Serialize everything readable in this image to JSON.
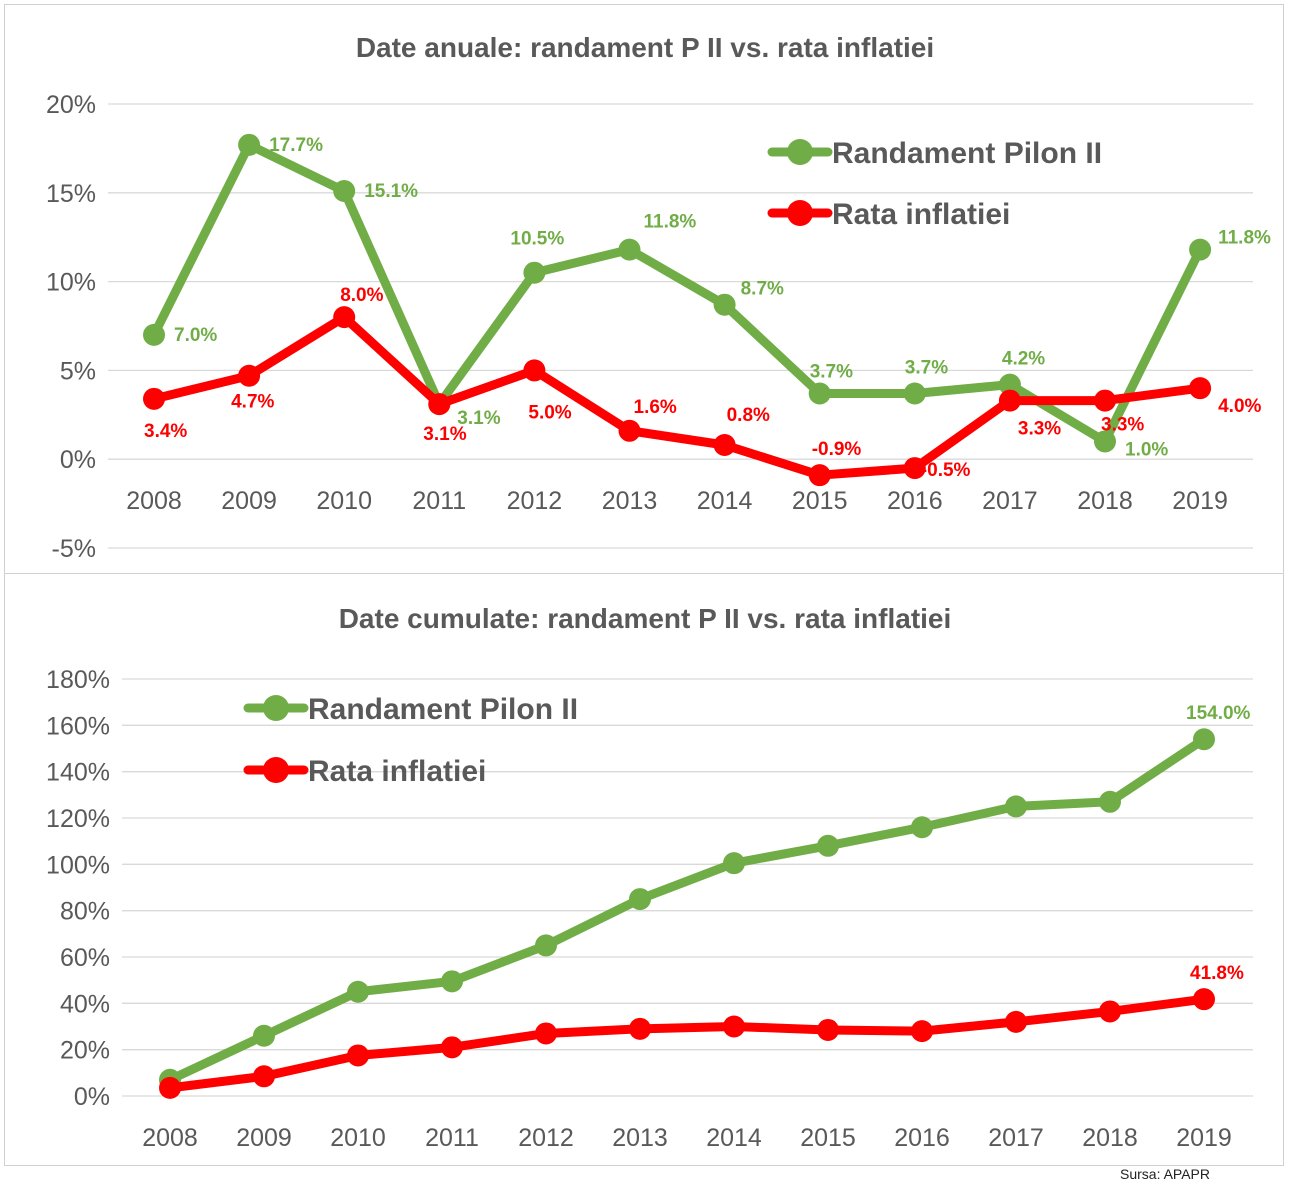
{
  "colors": {
    "green": "#70AD47",
    "red": "#FF0000",
    "grid": "#D9D9D9",
    "text": "#595959"
  },
  "source": "Sursa: APAPR",
  "chart_data": [
    {
      "type": "line",
      "title": "Date anuale: randament P II vs. rata inflatiei",
      "x": [
        "2008",
        "2009",
        "2010",
        "2011",
        "2012",
        "2013",
        "2014",
        "2015",
        "2016",
        "2017",
        "2018",
        "2019"
      ],
      "ylim": [
        -5,
        20
      ],
      "yticks": [
        "-5%",
        "0%",
        "5%",
        "10%",
        "15%",
        "20%"
      ],
      "grid": true,
      "legend_position": "top-right",
      "series": [
        {
          "name": "Randament Pilon II",
          "color": "#70AD47",
          "values": [
            7.0,
            17.7,
            15.1,
            3.1,
            10.5,
            11.8,
            8.7,
            3.7,
            3.7,
            4.2,
            1.0,
            11.8
          ],
          "labels": [
            "7.0%",
            "17.7%",
            "15.1%",
            "3.1%",
            "10.5%",
            "11.8%",
            "8.7%",
            "3.7%",
            "3.7%",
            "4.2%",
            "1.0%",
            "11.8%"
          ]
        },
        {
          "name": "Rata inflatiei",
          "color": "#FF0000",
          "values": [
            3.4,
            4.7,
            8.0,
            3.1,
            5.0,
            1.6,
            0.8,
            -0.9,
            -0.5,
            3.3,
            3.3,
            4.0
          ],
          "labels": [
            "3.4%",
            "4.7%",
            "8.0%",
            "3.1%",
            "5.0%",
            "1.6%",
            "0.8%",
            "-0.9%",
            "-0.5%",
            "3.3%",
            "3.3%",
            "4.0%"
          ]
        }
      ]
    },
    {
      "type": "line",
      "title": "Date cumulate: randament P II vs. rata inflatiei",
      "x": [
        "2008",
        "2009",
        "2010",
        "2011",
        "2012",
        "2013",
        "2014",
        "2015",
        "2016",
        "2017",
        "2018",
        "2019"
      ],
      "ylim": [
        0,
        180
      ],
      "yticks": [
        "0%",
        "20%",
        "40%",
        "60%",
        "80%",
        "100%",
        "120%",
        "140%",
        "160%",
        "180%"
      ],
      "grid": true,
      "legend_position": "top-left",
      "series": [
        {
          "name": "Randament Pilon II",
          "color": "#70AD47",
          "values": [
            7.0,
            26.0,
            45.0,
            49.5,
            65.0,
            85.0,
            100.5,
            108.0,
            116.0,
            125.0,
            127.0,
            154.0
          ],
          "labels": [
            "",
            "",
            "",
            "",
            "",
            "",
            "",
            "",
            "",
            "",
            "",
            "154.0%"
          ]
        },
        {
          "name": "Rata inflatiei",
          "color": "#FF0000",
          "values": [
            3.5,
            8.5,
            17.5,
            21.0,
            27.0,
            29.0,
            30.0,
            28.5,
            28.0,
            32.0,
            36.5,
            41.8
          ],
          "labels": [
            "",
            "",
            "",
            "",
            "",
            "",
            "",
            "",
            "",
            "",
            "",
            "41.8%"
          ]
        }
      ]
    }
  ]
}
